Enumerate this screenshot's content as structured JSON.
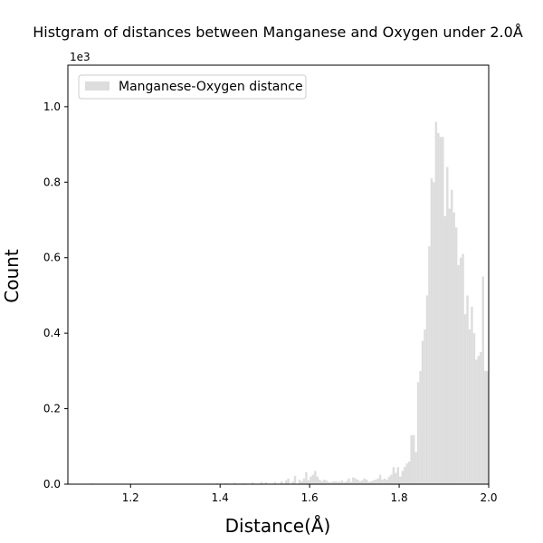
{
  "chart_data": {
    "type": "bar",
    "title": "Histgram of distances between Manganese and Oxygen under 2.0Å",
    "xlabel": "Distance(Å)",
    "ylabel": "Count",
    "y_offset_label": "1e3",
    "xlim": [
      1.06,
      2.0
    ],
    "ylim": [
      0,
      1.11
    ],
    "x_ticks": [
      1.2,
      1.4,
      1.6,
      1.8,
      2.0
    ],
    "x_tick_labels": [
      "1.2",
      "1.4",
      "1.6",
      "1.8",
      "2.0"
    ],
    "y_ticks": [
      0.0,
      0.2,
      0.4,
      0.6,
      0.8,
      1.0
    ],
    "y_tick_labels": [
      "0.0",
      "0.2",
      "0.4",
      "0.6",
      "0.8",
      "1.0"
    ],
    "legend": {
      "label": "Manganese-Oxygen distance",
      "position": "top-left"
    },
    "bar_color": "#dddddd",
    "bin_width": 0.005,
    "series": [
      {
        "name": "Manganese-Oxygen distance",
        "bins": [
          [
            1.11,
            0.002
          ],
          [
            1.39,
            0.003
          ],
          [
            1.41,
            0.003
          ],
          [
            1.43,
            0.004
          ],
          [
            1.45,
            0.003
          ],
          [
            1.47,
            0.005
          ],
          [
            1.49,
            0.006
          ],
          [
            1.5,
            0.005
          ],
          [
            1.52,
            0.006
          ],
          [
            1.535,
            0.008
          ],
          [
            1.545,
            0.01
          ],
          [
            1.55,
            0.015
          ],
          [
            1.56,
            0.007
          ],
          [
            1.565,
            0.022
          ],
          [
            1.575,
            0.012
          ],
          [
            1.58,
            0.008
          ],
          [
            1.585,
            0.015
          ],
          [
            1.59,
            0.032
          ],
          [
            1.595,
            0.01
          ],
          [
            1.6,
            0.02
          ],
          [
            1.605,
            0.025
          ],
          [
            1.61,
            0.035
          ],
          [
            1.615,
            0.02
          ],
          [
            1.62,
            0.012
          ],
          [
            1.625,
            0.008
          ],
          [
            1.63,
            0.012
          ],
          [
            1.635,
            0.01
          ],
          [
            1.64,
            0.006
          ],
          [
            1.645,
            0.005
          ],
          [
            1.65,
            0.007
          ],
          [
            1.655,
            0.008
          ],
          [
            1.66,
            0.006
          ],
          [
            1.665,
            0.007
          ],
          [
            1.67,
            0.01
          ],
          [
            1.675,
            0.005
          ],
          [
            1.68,
            0.008
          ],
          [
            1.685,
            0.015
          ],
          [
            1.69,
            0.006
          ],
          [
            1.695,
            0.018
          ],
          [
            1.7,
            0.015
          ],
          [
            1.705,
            0.012
          ],
          [
            1.71,
            0.008
          ],
          [
            1.715,
            0.01
          ],
          [
            1.72,
            0.015
          ],
          [
            1.725,
            0.012
          ],
          [
            1.73,
            0.006
          ],
          [
            1.735,
            0.008
          ],
          [
            1.74,
            0.01
          ],
          [
            1.745,
            0.012
          ],
          [
            1.75,
            0.015
          ],
          [
            1.755,
            0.025
          ],
          [
            1.76,
            0.012
          ],
          [
            1.765,
            0.015
          ],
          [
            1.77,
            0.012
          ],
          [
            1.775,
            0.02
          ],
          [
            1.78,
            0.025
          ],
          [
            1.785,
            0.045
          ],
          [
            1.79,
            0.03
          ],
          [
            1.795,
            0.045
          ],
          [
            1.8,
            0.02
          ],
          [
            1.805,
            0.035
          ],
          [
            1.81,
            0.045
          ],
          [
            1.815,
            0.055
          ],
          [
            1.82,
            0.06
          ],
          [
            1.825,
            0.13
          ],
          [
            1.83,
            0.13
          ],
          [
            1.835,
            0.085
          ],
          [
            1.84,
            0.27
          ],
          [
            1.845,
            0.3
          ],
          [
            1.85,
            0.38
          ],
          [
            1.855,
            0.41
          ],
          [
            1.86,
            0.5
          ],
          [
            1.865,
            0.63
          ],
          [
            1.87,
            0.81
          ],
          [
            1.875,
            0.8
          ],
          [
            1.88,
            0.96
          ],
          [
            1.885,
            0.93
          ],
          [
            1.89,
            0.92
          ],
          [
            1.895,
            0.92
          ],
          [
            1.9,
            0.71
          ],
          [
            1.905,
            0.84
          ],
          [
            1.91,
            0.73
          ],
          [
            1.915,
            0.78
          ],
          [
            1.92,
            0.72
          ],
          [
            1.925,
            0.68
          ],
          [
            1.93,
            0.58
          ],
          [
            1.935,
            0.6
          ],
          [
            1.94,
            0.61
          ],
          [
            1.945,
            0.45
          ],
          [
            1.95,
            0.5
          ],
          [
            1.955,
            0.41
          ],
          [
            1.96,
            0.47
          ],
          [
            1.965,
            0.4
          ],
          [
            1.97,
            0.33
          ],
          [
            1.975,
            0.34
          ],
          [
            1.98,
            0.35
          ],
          [
            1.985,
            0.55
          ],
          [
            1.99,
            0.3
          ],
          [
            1.995,
            0.3
          ]
        ]
      }
    ]
  }
}
